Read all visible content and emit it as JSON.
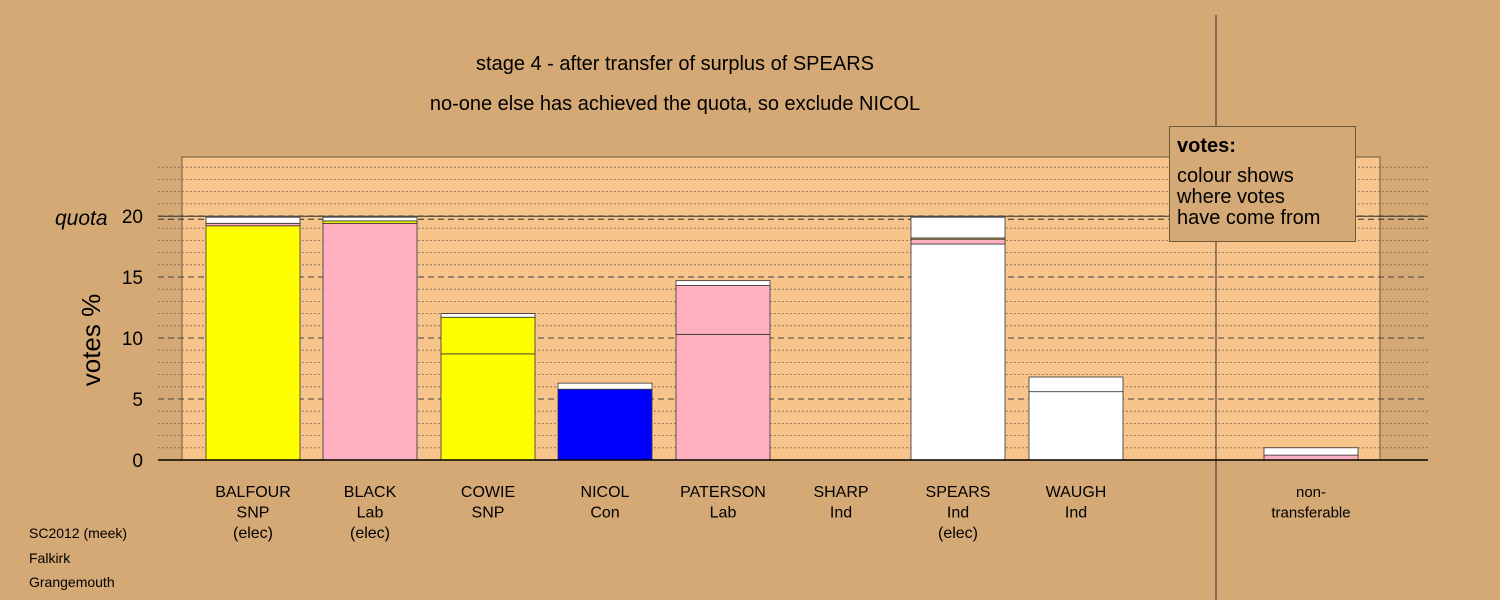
{
  "captions": {
    "line1": "stage 4 - after transfer of surplus of SPEARS",
    "line2": "no-one else has achieved the quota, so exclude NICOL"
  },
  "legend": {
    "title": "votes:",
    "lines": [
      "colour shows",
      "where votes",
      "have come from"
    ]
  },
  "footer": [
    "SC2012 (meek)",
    "Falkirk",
    "Grangemouth"
  ],
  "colors": {
    "background": "#d4a976",
    "plot_area": "#f7c48b",
    "SNP": "#ffff00",
    "Lab": "#ffb0c0",
    "Con": "#0000ff",
    "Ind": "#ffffff"
  },
  "chart_data": {
    "type": "bar",
    "stacked": true,
    "ylabel": "votes %",
    "quota_label": "quota",
    "quota": 19.9,
    "ylim": [
      0,
      25
    ],
    "yticks": [
      0,
      5,
      10,
      15,
      20
    ],
    "minor_grid_step": 1,
    "bars": [
      {
        "name": "BALFOUR",
        "party": "SNP",
        "status": "(elec)",
        "segments": [
          {
            "from": "SNP",
            "value": 19.2
          },
          {
            "from": "Lab",
            "value": 0.2
          },
          {
            "from": "Ind",
            "value": 0.5
          }
        ]
      },
      {
        "name": "BLACK",
        "party": "Lab",
        "status": "(elec)",
        "segments": [
          {
            "from": "Lab",
            "value": 19.4
          },
          {
            "from": "SNP",
            "value": 0.2
          },
          {
            "from": "Ind",
            "value": 0.3
          }
        ]
      },
      {
        "name": "COWIE",
        "party": "SNP",
        "status": "",
        "segments": [
          {
            "from": "SNP",
            "value": 8.7
          },
          {
            "from": "SNP",
            "value": 3.0
          },
          {
            "from": "Ind",
            "value": 0.3
          }
        ]
      },
      {
        "name": "NICOL",
        "party": "Con",
        "status": "",
        "segments": [
          {
            "from": "Con",
            "value": 5.8
          },
          {
            "from": "Ind",
            "value": 0.5
          }
        ]
      },
      {
        "name": "PATERSON",
        "party": "Lab",
        "status": "",
        "segments": [
          {
            "from": "Lab",
            "value": 10.3
          },
          {
            "from": "Lab",
            "value": 4.0
          },
          {
            "from": "Ind",
            "value": 0.4
          }
        ]
      },
      {
        "name": "SHARP",
        "party": "Ind",
        "status": "",
        "segments": []
      },
      {
        "name": "SPEARS",
        "party": "Ind",
        "status": "(elec)",
        "segments": [
          {
            "from": "Ind",
            "value": 17.7
          },
          {
            "from": "Lab",
            "value": 0.4
          },
          {
            "from": "SNP",
            "value": 0.1
          },
          {
            "from": "Ind",
            "value": 1.7
          }
        ]
      },
      {
        "name": "WAUGH",
        "party": "Ind",
        "status": "",
        "segments": [
          {
            "from": "Ind",
            "value": 5.6
          },
          {
            "from": "Ind",
            "value": 1.2
          }
        ]
      },
      {
        "name": "non-\ntransferable",
        "party": "",
        "status": "",
        "segments": [
          {
            "from": "Lab",
            "value": 0.4
          },
          {
            "from": "Ind",
            "value": 0.6
          }
        ]
      }
    ]
  }
}
